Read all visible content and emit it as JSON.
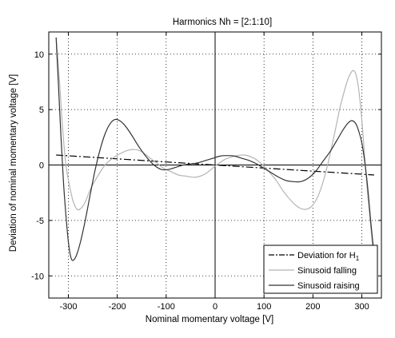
{
  "chart_data": {
    "type": "line",
    "title": "Harmonics Nh = [2:1:10]",
    "xlabel": "Nominal momentary voltage [V]",
    "ylabel": "Deviation of nominal momentary voltage [V]",
    "xlim": [
      -340,
      340
    ],
    "ylim": [
      -12,
      12
    ],
    "xticks": [
      -300,
      -200,
      -100,
      0,
      100,
      200,
      300
    ],
    "yticks": [
      -10,
      -5,
      0,
      5,
      10
    ],
    "grid": "dotted",
    "legend_position": "bottom-right",
    "legend": [
      {
        "name": "Deviation for H",
        "subscript": "1",
        "style": "dash-dot",
        "color": "#000000"
      },
      {
        "name": "Sinusoid falling",
        "style": "solid",
        "color": "#b4b4b4"
      },
      {
        "name": "Sinusoid raising",
        "style": "solid",
        "color": "#333333"
      }
    ],
    "series": [
      {
        "name": "Deviation for H1",
        "color": "#000000",
        "dash": "9,3,2,3",
        "x": [
          -325,
          0,
          325
        ],
        "y": [
          0.9,
          0.0,
          -0.9
        ]
      },
      {
        "name": "Sinusoid falling",
        "color": "#b4b4b4",
        "x": [
          -325,
          -318,
          -312,
          -305,
          -296,
          -290,
          -282,
          -274,
          -265,
          -255,
          -240,
          -225,
          -210,
          -195,
          -180,
          -165,
          -150,
          -135,
          -120,
          -105,
          -90,
          -75,
          -60,
          -40,
          -20,
          0,
          20,
          40,
          60,
          80,
          95,
          110,
          125,
          140,
          155,
          170,
          185,
          200,
          215,
          230,
          245,
          255,
          265,
          273,
          281,
          287,
          292,
          297,
          302,
          307,
          312,
          317,
          322,
          325
        ],
        "y": [
          11.5,
          7.5,
          3.5,
          0.0,
          -2.2,
          -3.3,
          -4.0,
          -3.9,
          -3.3,
          -2.2,
          -1.0,
          0.0,
          0.6,
          1.0,
          1.3,
          1.4,
          1.2,
          0.7,
          0.2,
          -0.3,
          -0.6,
          -0.9,
          -1.0,
          -1.1,
          -0.8,
          -0.1,
          0.5,
          0.8,
          0.9,
          0.6,
          0.1,
          -0.6,
          -1.4,
          -2.4,
          -3.2,
          -3.8,
          -4.0,
          -3.6,
          -2.3,
          0.0,
          3.0,
          5.1,
          6.8,
          7.9,
          8.5,
          8.3,
          7.3,
          5.5,
          3.0,
          0.0,
          -2.7,
          -5.0,
          -7.3,
          -9.0
        ]
      },
      {
        "name": "Sinusoid raising",
        "color": "#333333",
        "x": [
          -325,
          -320,
          -315,
          -310,
          -305,
          -300,
          -295,
          -290,
          -283,
          -275,
          -265,
          -255,
          -245,
          -235,
          -225,
          -215,
          -205,
          -195,
          -185,
          -175,
          -165,
          -155,
          -140,
          -125,
          -110,
          -95,
          -80,
          -65,
          -50,
          -35,
          -20,
          -5,
          10,
          25,
          40,
          55,
          70,
          85,
          100,
          115,
          130,
          145,
          160,
          175,
          190,
          205,
          220,
          235,
          250,
          262,
          272,
          280,
          288,
          294,
          300,
          305,
          310,
          314,
          318,
          322,
          325
        ],
        "y": [
          11.5,
          7.0,
          2.5,
          -1.5,
          -4.5,
          -6.9,
          -8.3,
          -8.6,
          -8.1,
          -6.9,
          -4.9,
          -2.6,
          -0.4,
          1.4,
          2.8,
          3.7,
          4.1,
          4.0,
          3.6,
          3.0,
          2.3,
          1.6,
          0.7,
          0.0,
          -0.4,
          -0.4,
          -0.2,
          0.0,
          0.1,
          0.2,
          0.4,
          0.6,
          0.8,
          0.85,
          0.8,
          0.6,
          0.4,
          0.1,
          -0.3,
          -0.7,
          -1.1,
          -1.4,
          -1.5,
          -1.5,
          -1.2,
          -0.6,
          0.3,
          1.2,
          2.3,
          3.2,
          3.8,
          4.0,
          3.7,
          3.0,
          2.0,
          0.6,
          -1.2,
          -3.0,
          -5.0,
          -6.8,
          -8.0
        ]
      }
    ]
  }
}
